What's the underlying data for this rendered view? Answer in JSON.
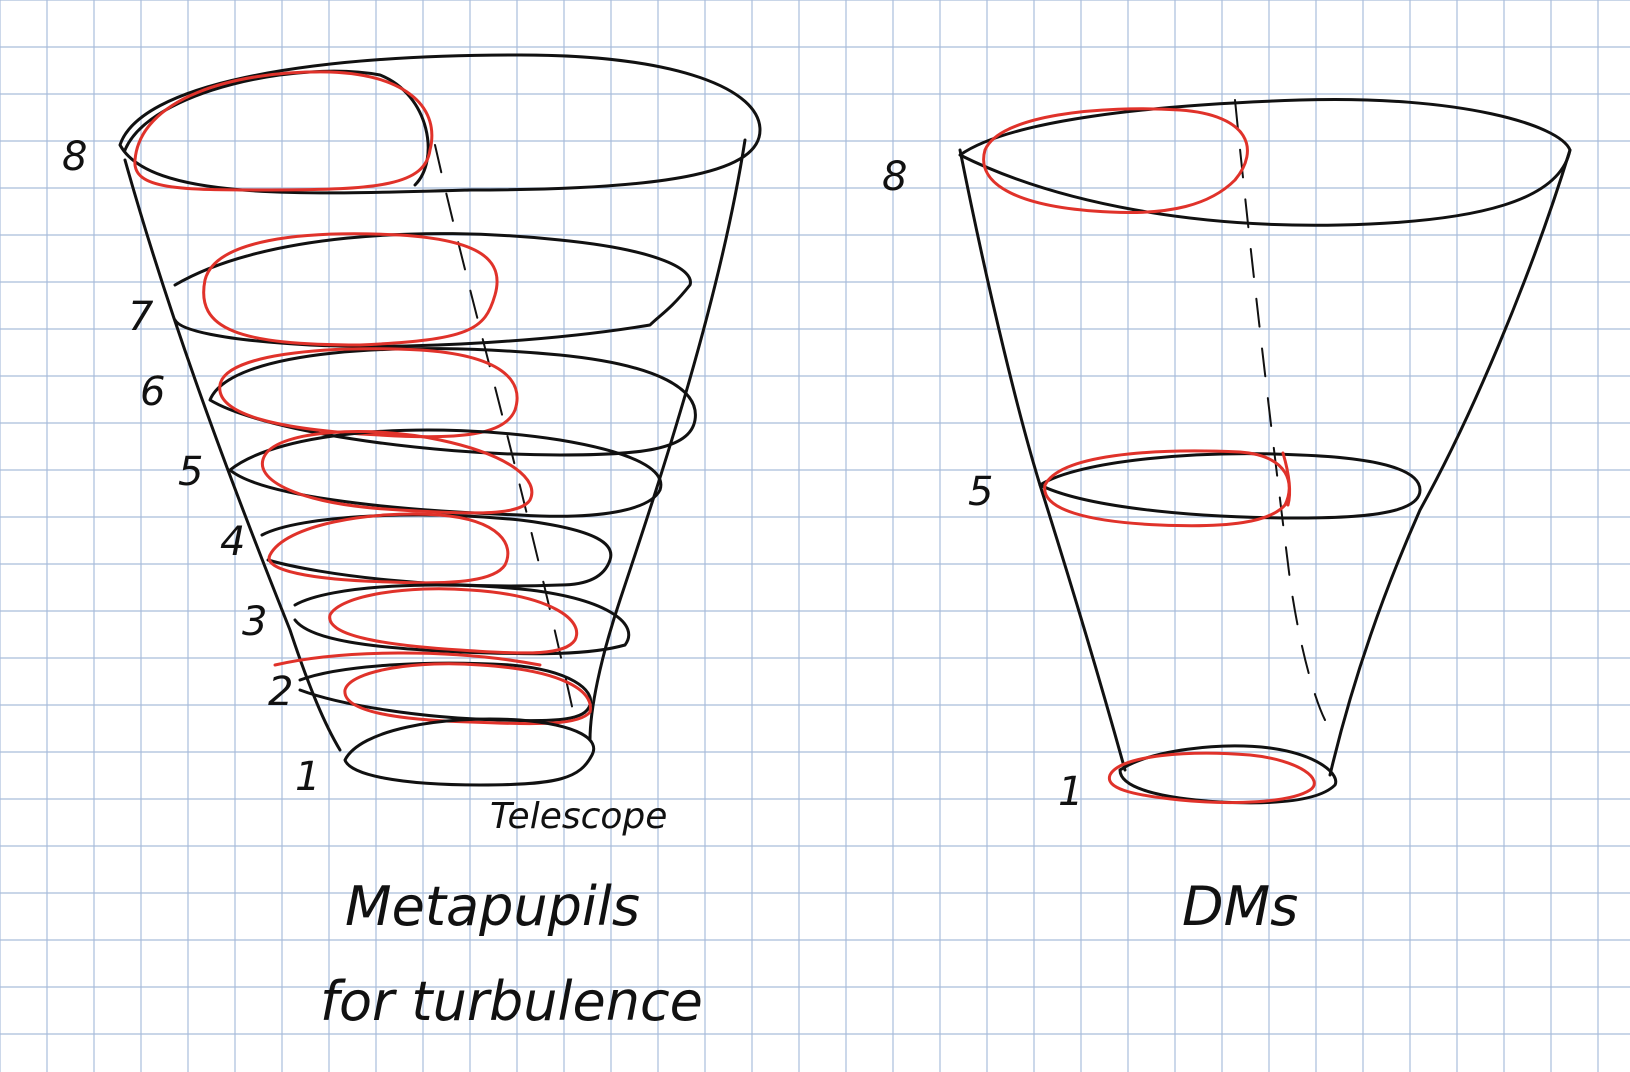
{
  "colors": {
    "grid": "#a9bddb",
    "ink": "#111111",
    "red": "#e0322a",
    "paper": "#ffffff"
  },
  "left_diagram": {
    "caption_line1": "Metapupils",
    "caption_line2": "for turbulence",
    "telescope_label": "Telescope",
    "layer_labels": [
      "8",
      "7",
      "6",
      "5",
      "4",
      "3",
      "2",
      "1"
    ]
  },
  "right_diagram": {
    "caption": "DMs",
    "layer_labels": [
      "8",
      "5",
      "1"
    ]
  }
}
